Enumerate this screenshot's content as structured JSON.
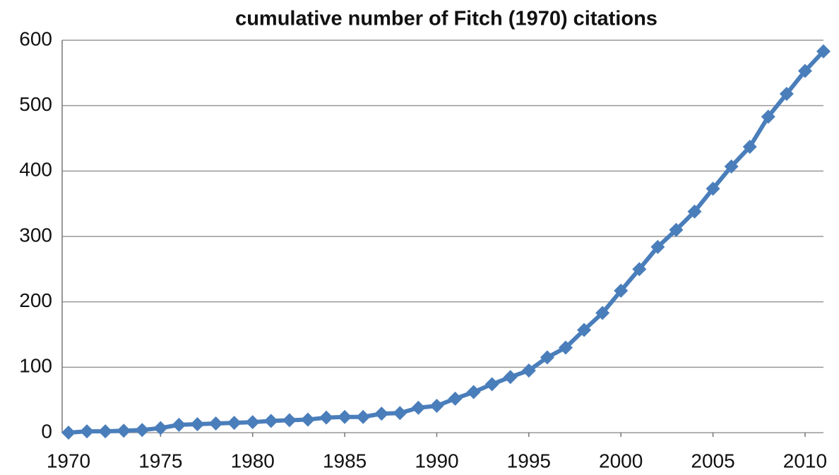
{
  "chart_data": {
    "type": "line",
    "title": "cumulative number of Fitch (1970) citations",
    "x": [
      1970,
      1971,
      1972,
      1973,
      1974,
      1975,
      1976,
      1977,
      1978,
      1979,
      1980,
      1981,
      1982,
      1983,
      1984,
      1985,
      1986,
      1987,
      1988,
      1989,
      1990,
      1991,
      1992,
      1993,
      1994,
      1995,
      1996,
      1997,
      1998,
      1999,
      2000,
      2001,
      2002,
      2003,
      2004,
      2005,
      2006,
      2007,
      2008,
      2009,
      2010,
      2011
    ],
    "series": [
      {
        "color": "#4a7ebb",
        "values": [
          0,
          2,
          2,
          3,
          4,
          7,
          12,
          13,
          14,
          15,
          16,
          18,
          19,
          20,
          23,
          24,
          24,
          29,
          30,
          38,
          41,
          52,
          62,
          74,
          85,
          95,
          115,
          130,
          157,
          183,
          217,
          250,
          284,
          310,
          338,
          373,
          407,
          437,
          483,
          518,
          553,
          583
        ]
      }
    ],
    "xlim": [
      1970,
      2011
    ],
    "xticks": [
      1970,
      1975,
      1980,
      1985,
      1990,
      1995,
      2000,
      2005,
      2010
    ],
    "ylim": [
      0,
      600
    ],
    "yticks": [
      0,
      100,
      200,
      300,
      400,
      500,
      600
    ],
    "grid": true
  }
}
